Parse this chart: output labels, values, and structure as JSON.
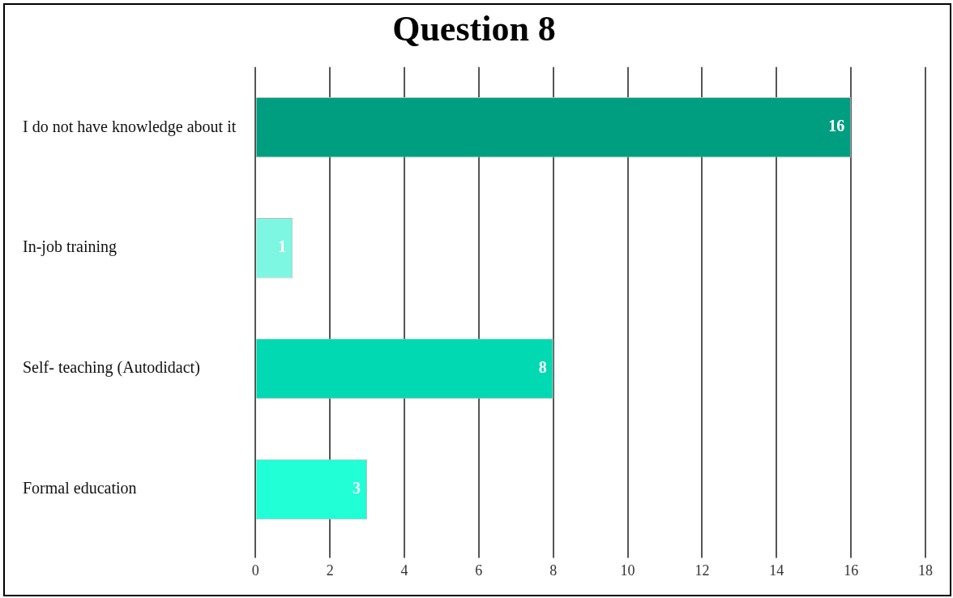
{
  "chart_data": {
    "type": "bar",
    "orientation": "horizontal",
    "title": "Question 8",
    "categories": [
      "I do not have knowledge about it",
      "In-job training",
      "Self- teaching (Autodidact)",
      "Formal education"
    ],
    "values": [
      16,
      1,
      8,
      3
    ],
    "colors": [
      "#009e80",
      "#7df7e2",
      "#00d9b2",
      "#20ffd6"
    ],
    "xlim": [
      0,
      18
    ],
    "xticks": [
      0,
      2,
      4,
      6,
      8,
      10,
      12,
      14,
      16,
      18
    ],
    "grid": "x",
    "data_labels": true,
    "legend": false
  }
}
